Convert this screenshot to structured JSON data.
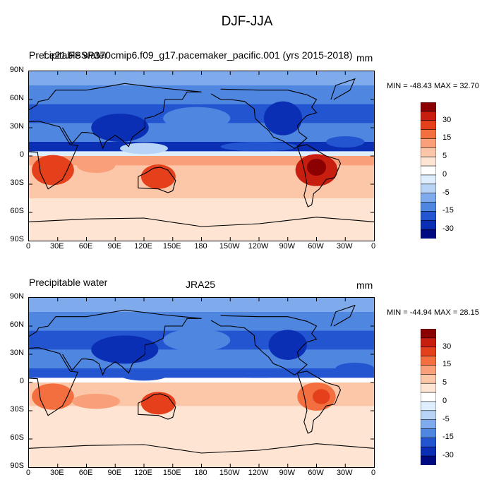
{
  "figure": {
    "title": "DJF-JJA"
  },
  "panels": [
    {
      "left_label_a": "Precipitable water",
      "center_label": "f.e21.FSSP370cmip6.f09_g17.pacemaker_pacific.001 (yrs 2015-2018)",
      "units": "mm",
      "minmax": "MIN = -48.43 MAX =  32.70",
      "field_key": "model"
    },
    {
      "left_label_a": "Precipitable water",
      "center_label": "JRA25",
      "units": "mm",
      "minmax": "MIN = -44.94 MAX =  28.15",
      "field_key": "obs"
    }
  ],
  "axes": {
    "lat_ticks": [
      "90N",
      "60N",
      "30N",
      "0",
      "30S",
      "60S",
      "90S"
    ],
    "lon_ticks": [
      "0",
      "30E",
      "60E",
      "90E",
      "120E",
      "150E",
      "180",
      "150W",
      "120W",
      "90W",
      "60W",
      "30W",
      "0"
    ]
  },
  "colorbar": {
    "labels": [
      "30",
      "15",
      "5",
      "0",
      "-5",
      "-15",
      "-30"
    ],
    "colors": [
      "#8b0000",
      "#c81e0f",
      "#e4401c",
      "#f46f3f",
      "#f9a07a",
      "#fcc6a8",
      "#fee4d3",
      "#ffffff",
      "#deeefe",
      "#b7d4f7",
      "#7fabec",
      "#4f86e0",
      "#2455d1",
      "#0a2fb5",
      "#000a80"
    ]
  }
}
